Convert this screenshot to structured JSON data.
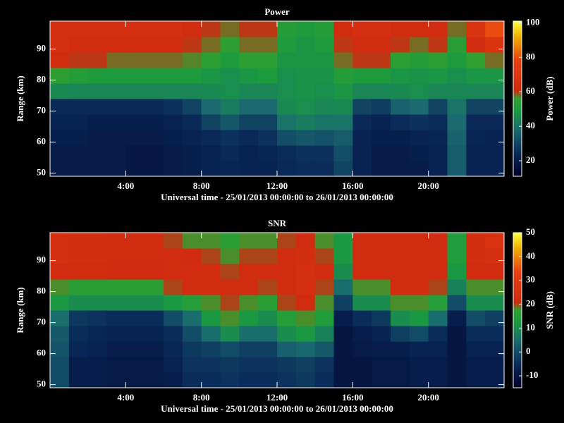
{
  "chart_data": [
    {
      "type": "heatmap",
      "title": "Power",
      "xlabel": "Universal time - 25/01/2013 00:00:00 to 26/01/2013 00:00:00",
      "ylabel": "Range (km)",
      "colorbar_label": "Power (dB)",
      "x": [
        0,
        1,
        2,
        3,
        4,
        5,
        6,
        7,
        8,
        9,
        10,
        11,
        12,
        13,
        14,
        15,
        16,
        17,
        18,
        19,
        20,
        21,
        22,
        23,
        24
      ],
      "y": [
        49,
        54,
        59,
        64,
        69,
        74,
        79,
        84,
        89,
        94,
        99
      ],
      "values": [
        [
          20,
          20,
          20,
          20,
          19,
          19,
          20,
          21,
          22,
          23,
          22,
          22,
          24,
          25,
          25,
          30,
          22,
          20,
          20,
          20,
          22,
          35,
          22,
          22
        ],
        [
          20,
          20,
          20,
          20,
          19,
          19,
          20,
          21,
          22,
          24,
          22,
          23,
          25,
          26,
          26,
          32,
          22,
          20,
          20,
          21,
          22,
          35,
          22,
          22
        ],
        [
          21,
          21,
          20,
          20,
          20,
          20,
          21,
          22,
          24,
          26,
          24,
          26,
          32,
          34,
          33,
          35,
          22,
          21,
          21,
          22,
          23,
          36,
          23,
          22
        ],
        [
          22,
          22,
          21,
          21,
          21,
          21,
          22,
          24,
          30,
          34,
          30,
          30,
          40,
          42,
          40,
          40,
          24,
          22,
          25,
          26,
          25,
          38,
          24,
          24
        ],
        [
          24,
          24,
          24,
          24,
          24,
          24,
          26,
          30,
          38,
          42,
          38,
          38,
          45,
          46,
          44,
          45,
          30,
          28,
          36,
          38,
          30,
          40,
          30,
          30
        ],
        [
          45,
          44,
          44,
          44,
          44,
          44,
          44,
          44,
          45,
          46,
          44,
          44,
          46,
          47,
          46,
          48,
          44,
          44,
          45,
          46,
          44,
          44,
          44,
          44
        ],
        [
          55,
          52,
          50,
          50,
          50,
          50,
          50,
          50,
          48,
          46,
          48,
          50,
          46,
          47,
          47,
          52,
          50,
          50,
          48,
          47,
          48,
          46,
          48,
          48
        ],
        [
          62,
          60,
          60,
          58,
          58,
          58,
          58,
          57,
          55,
          50,
          55,
          55,
          48,
          48,
          48,
          58,
          60,
          60,
          55,
          52,
          55,
          50,
          56,
          58
        ],
        [
          64,
          63,
          62,
          62,
          62,
          62,
          62,
          60,
          58,
          55,
          58,
          58,
          50,
          48,
          50,
          60,
          62,
          62,
          60,
          58,
          60,
          54,
          62,
          68
        ],
        [
          65,
          65,
          64,
          64,
          64,
          64,
          64,
          62,
          60,
          58,
          60,
          60,
          52,
          50,
          52,
          62,
          64,
          64,
          62,
          62,
          62,
          58,
          68,
          80
        ]
      ],
      "xlim": [
        0,
        24
      ],
      "ylim": [
        49,
        99
      ],
      "xticks": [
        {
          "value": 4,
          "label": "4:00"
        },
        {
          "value": 8,
          "label": "8:00"
        },
        {
          "value": 12,
          "label": "12:00"
        },
        {
          "value": 16,
          "label": "16:00"
        },
        {
          "value": 20,
          "label": "20:00"
        }
      ],
      "yticks": [
        50,
        60,
        70,
        80,
        90
      ],
      "clim": [
        11,
        101
      ],
      "cticks": [
        20,
        40,
        60,
        80,
        100
      ],
      "colorscale": [
        [
          0,
          "#000028"
        ],
        [
          0.15,
          "#0a2a5a"
        ],
        [
          0.3,
          "#1a6a70"
        ],
        [
          0.42,
          "#1a9a40"
        ],
        [
          0.5,
          "#30a030"
        ],
        [
          0.55,
          "#d02a10"
        ],
        [
          0.75,
          "#e84010"
        ],
        [
          0.9,
          "#f0b000"
        ],
        [
          1,
          "#ffff40"
        ]
      ]
    },
    {
      "type": "heatmap",
      "title": "SNR",
      "xlabel": "Universal time - 25/01/2013 00:00:00 to 26/01/2013 00:00:00",
      "ylabel": "Range (km)",
      "colorbar_label": "SNR (dB)",
      "x": [
        0,
        1,
        2,
        3,
        4,
        5,
        6,
        7,
        8,
        9,
        10,
        11,
        12,
        13,
        14,
        15,
        16,
        17,
        18,
        19,
        20,
        21,
        22,
        23,
        24
      ],
      "y": [
        49,
        54,
        59,
        64,
        69,
        74,
        79,
        84,
        89,
        94,
        99
      ],
      "values": [
        [
          0,
          -8,
          -8,
          -9,
          -9,
          -9,
          -8,
          -5,
          -5,
          -4,
          -5,
          -5,
          -4,
          -3,
          -5,
          -10,
          -10,
          -9,
          -9,
          -8,
          -8,
          -10,
          -8,
          -8
        ],
        [
          0,
          -8,
          -8,
          -9,
          -9,
          -9,
          -7,
          -4,
          -4,
          -3,
          -4,
          -4,
          -3,
          -2,
          -4,
          -10,
          -10,
          -9,
          -9,
          -8,
          -8,
          -10,
          -8,
          -8
        ],
        [
          1,
          -6,
          -7,
          -8,
          -8,
          -8,
          -6,
          -3,
          -2,
          0,
          -2,
          -2,
          3,
          4,
          2,
          -10,
          -9,
          -8,
          -8,
          -7,
          -7,
          -10,
          -7,
          -7
        ],
        [
          2,
          -5,
          -6,
          -7,
          -7,
          -7,
          -5,
          0,
          5,
          10,
          5,
          5,
          10,
          12,
          8,
          -10,
          -8,
          -7,
          -2,
          0,
          -5,
          -10,
          -5,
          -5
        ],
        [
          5,
          -3,
          -4,
          -5,
          -5,
          -5,
          0,
          5,
          12,
          18,
          12,
          10,
          15,
          18,
          14,
          -8,
          -5,
          -3,
          10,
          12,
          5,
          -8,
          0,
          -2
        ],
        [
          12,
          10,
          10,
          10,
          10,
          10,
          12,
          15,
          18,
          20,
          18,
          16,
          20,
          22,
          18,
          -2,
          10,
          10,
          18,
          18,
          15,
          0,
          10,
          10
        ],
        [
          18,
          16,
          16,
          16,
          16,
          16,
          20,
          22,
          22,
          22,
          22,
          20,
          22,
          24,
          20,
          5,
          18,
          18,
          22,
          22,
          20,
          8,
          18,
          18
        ],
        [
          22,
          22,
          22,
          21,
          21,
          21,
          22,
          22,
          22,
          20,
          22,
          22,
          22,
          24,
          22,
          10,
          22,
          22,
          22,
          22,
          22,
          12,
          22,
          22
        ],
        [
          24,
          23,
          23,
          22,
          22,
          22,
          22,
          21,
          20,
          18,
          20,
          20,
          22,
          23,
          20,
          12,
          22,
          22,
          22,
          22,
          22,
          14,
          23,
          24
        ],
        [
          24,
          23,
          23,
          22,
          22,
          22,
          20,
          18,
          18,
          16,
          18,
          18,
          20,
          22,
          18,
          12,
          22,
          22,
          22,
          22,
          22,
          14,
          23,
          25
        ]
      ],
      "xlim": [
        0,
        24
      ],
      "ylim": [
        49,
        99
      ],
      "xticks": [
        {
          "value": 4,
          "label": "4:00"
        },
        {
          "value": 8,
          "label": "8:00"
        },
        {
          "value": 12,
          "label": "12:00"
        },
        {
          "value": 16,
          "label": "16:00"
        },
        {
          "value": 20,
          "label": "20:00"
        }
      ],
      "yticks": [
        50,
        60,
        70,
        80,
        90
      ],
      "clim": [
        -15,
        50
      ],
      "cticks": [
        -10,
        0,
        10,
        20,
        30,
        40,
        50
      ],
      "colorscale": [
        [
          0,
          "#000028"
        ],
        [
          0.15,
          "#0a2a5a"
        ],
        [
          0.3,
          "#1a6a70"
        ],
        [
          0.42,
          "#1a9a40"
        ],
        [
          0.5,
          "#30a030"
        ],
        [
          0.55,
          "#d02a10"
        ],
        [
          0.75,
          "#e84010"
        ],
        [
          0.9,
          "#f0b000"
        ],
        [
          1,
          "#ffff40"
        ]
      ]
    }
  ]
}
